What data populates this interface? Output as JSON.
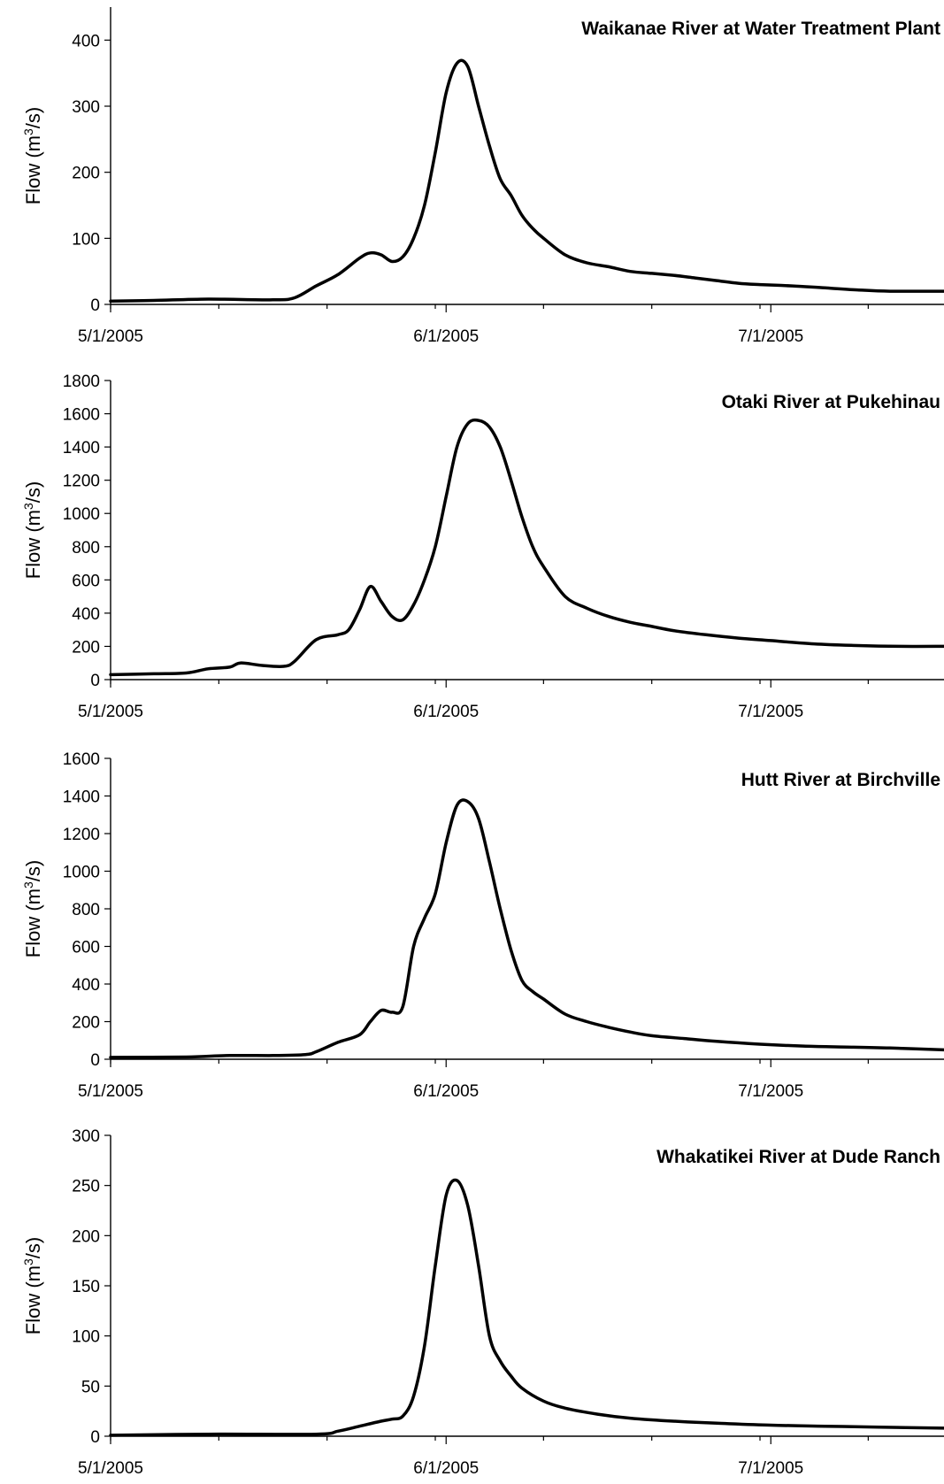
{
  "chart_data": [
    {
      "type": "line",
      "title": "Waikanae River at Water Treatment Plant",
      "ylabel_base": "Flow (m",
      "ylabel_sup": "3",
      "ylabel_end": "/s)",
      "xlabel": "",
      "ylim": [
        0,
        450
      ],
      "yticks": [
        "0",
        "100",
        "200",
        "300",
        "400"
      ],
      "xticks": [
        "5/1/2005",
        "6/1/2005",
        "7/1/2005"
      ],
      "xlim": [
        "2005-05-01",
        "2005-07-17"
      ],
      "grid": false,
      "series": [
        {
          "x": [
            "2005-05-01",
            "2005-05-05",
            "2005-05-10",
            "2005-05-16",
            "2005-05-18",
            "2005-05-20",
            "2005-05-22",
            "2005-05-24",
            "2005-05-25",
            "2005-05-26",
            "2005-05-27",
            "2005-05-28",
            "2005-05-29",
            "2005-05-30",
            "2005-05-31",
            "2005-06-01",
            "2005-06-02",
            "2005-06-03",
            "2005-06-04",
            "2005-06-05",
            "2005-06-06",
            "2005-06-07",
            "2005-06-08",
            "2005-06-09",
            "2005-06-10",
            "2005-06-12",
            "2005-06-14",
            "2005-06-16",
            "2005-06-18",
            "2005-06-20",
            "2005-06-22",
            "2005-06-24",
            "2005-06-26",
            "2005-06-28",
            "2005-06-30",
            "2005-07-03",
            "2005-07-06",
            "2005-07-09",
            "2005-07-12",
            "2005-07-17"
          ],
          "y": [
            5,
            6,
            8,
            7,
            10,
            28,
            45,
            70,
            78,
            75,
            65,
            72,
            100,
            150,
            230,
            320,
            365,
            360,
            300,
            240,
            190,
            165,
            135,
            115,
            100,
            75,
            63,
            57,
            50,
            47,
            44,
            40,
            36,
            32,
            30,
            28,
            25,
            22,
            20,
            20
          ]
        }
      ]
    },
    {
      "type": "line",
      "title": "Otaki River at Pukehinau",
      "ylabel_base": "Flow (m",
      "ylabel_sup": "3",
      "ylabel_end": "/s)",
      "xlabel": "",
      "ylim": [
        0,
        1800
      ],
      "yticks": [
        "0",
        "200",
        "400",
        "600",
        "800",
        "1000",
        "1200",
        "1400",
        "1600",
        "1800"
      ],
      "xticks": [
        "5/1/2005",
        "6/1/2005",
        "7/1/2005"
      ],
      "xlim": [
        "2005-05-01",
        "2005-07-17"
      ],
      "grid": false,
      "series": [
        {
          "x": [
            "2005-05-01",
            "2005-05-05",
            "2005-05-08",
            "2005-05-10",
            "2005-05-12",
            "2005-05-13",
            "2005-05-15",
            "2005-05-17",
            "2005-05-18",
            "2005-05-20",
            "2005-05-22",
            "2005-05-23",
            "2005-05-24",
            "2005-05-25",
            "2005-05-26",
            "2005-05-27",
            "2005-05-28",
            "2005-05-29",
            "2005-05-30",
            "2005-05-31",
            "2005-06-01",
            "2005-06-02",
            "2005-06-03",
            "2005-06-04",
            "2005-06-05",
            "2005-06-06",
            "2005-06-07",
            "2005-06-08",
            "2005-06-09",
            "2005-06-10",
            "2005-06-12",
            "2005-06-14",
            "2005-06-16",
            "2005-06-18",
            "2005-06-20",
            "2005-06-22",
            "2005-06-25",
            "2005-06-28",
            "2005-07-01",
            "2005-07-05",
            "2005-07-09",
            "2005-07-13",
            "2005-07-17"
          ],
          "y": [
            30,
            35,
            40,
            65,
            75,
            100,
            85,
            80,
            110,
            240,
            270,
            300,
            420,
            560,
            470,
            380,
            360,
            450,
            600,
            800,
            1100,
            1400,
            1540,
            1560,
            1520,
            1400,
            1200,
            980,
            800,
            680,
            500,
            430,
            380,
            345,
            320,
            295,
            270,
            250,
            235,
            215,
            205,
            200,
            200
          ]
        }
      ]
    },
    {
      "type": "line",
      "title": "Hutt River at Birchville",
      "ylabel_base": "Flow (m",
      "ylabel_sup": "3",
      "ylabel_end": "/s)",
      "xlabel": "",
      "ylim": [
        0,
        1600
      ],
      "yticks": [
        "0",
        "200",
        "400",
        "600",
        "800",
        "1000",
        "1200",
        "1400",
        "1600"
      ],
      "xticks": [
        "5/1/2005",
        "6/1/2005",
        "7/1/2005"
      ],
      "xlim": [
        "2005-05-01",
        "2005-07-17"
      ],
      "grid": false,
      "series": [
        {
          "x": [
            "2005-05-01",
            "2005-05-08",
            "2005-05-12",
            "2005-05-16",
            "2005-05-19",
            "2005-05-20",
            "2005-05-22",
            "2005-05-24",
            "2005-05-25",
            "2005-05-26",
            "2005-05-27",
            "2005-05-28",
            "2005-05-29",
            "2005-05-30",
            "2005-05-31",
            "2005-06-01",
            "2005-06-02",
            "2005-06-03",
            "2005-06-04",
            "2005-06-05",
            "2005-06-06",
            "2005-06-07",
            "2005-06-08",
            "2005-06-09",
            "2005-06-10",
            "2005-06-12",
            "2005-06-14",
            "2005-06-16",
            "2005-06-18",
            "2005-06-20",
            "2005-06-23",
            "2005-06-26",
            "2005-06-30",
            "2005-07-04",
            "2005-07-08",
            "2005-07-12",
            "2005-07-17"
          ],
          "y": [
            10,
            12,
            20,
            20,
            25,
            40,
            90,
            130,
            200,
            260,
            250,
            280,
            600,
            750,
            880,
            1150,
            1350,
            1370,
            1280,
            1050,
            800,
            580,
            420,
            360,
            320,
            240,
            200,
            170,
            145,
            125,
            110,
            95,
            80,
            70,
            65,
            60,
            50
          ]
        }
      ]
    },
    {
      "type": "line",
      "title": "Whakatikei River at Dude Ranch",
      "ylabel_base": "Flow (m",
      "ylabel_sup": "3",
      "ylabel_end": "/s)",
      "xlabel": "",
      "ylim": [
        0,
        300
      ],
      "yticks": [
        "0",
        "50",
        "100",
        "150",
        "200",
        "250",
        "300"
      ],
      "xticks": [
        "5/1/2005",
        "6/1/2005",
        "7/1/2005"
      ],
      "xlim": [
        "2005-05-01",
        "2005-07-17"
      ],
      "grid": false,
      "series": [
        {
          "x": [
            "2005-05-01",
            "2005-05-10",
            "2005-05-20",
            "2005-05-22",
            "2005-05-24",
            "2005-05-26",
            "2005-05-27",
            "2005-05-28",
            "2005-05-29",
            "2005-05-30",
            "2005-05-31",
            "2005-06-01",
            "2005-06-02",
            "2005-06-03",
            "2005-06-04",
            "2005-06-05",
            "2005-06-06",
            "2005-06-07",
            "2005-06-08",
            "2005-06-10",
            "2005-06-12",
            "2005-06-15",
            "2005-06-18",
            "2005-06-22",
            "2005-06-26",
            "2005-07-01",
            "2005-07-06",
            "2005-07-11",
            "2005-07-17"
          ],
          "y": [
            1,
            2,
            2,
            5,
            10,
            15,
            17,
            20,
            40,
            90,
            170,
            240,
            255,
            230,
            170,
            100,
            75,
            60,
            48,
            35,
            28,
            22,
            18,
            15,
            13,
            11,
            10,
            9,
            8
          ]
        }
      ]
    }
  ]
}
